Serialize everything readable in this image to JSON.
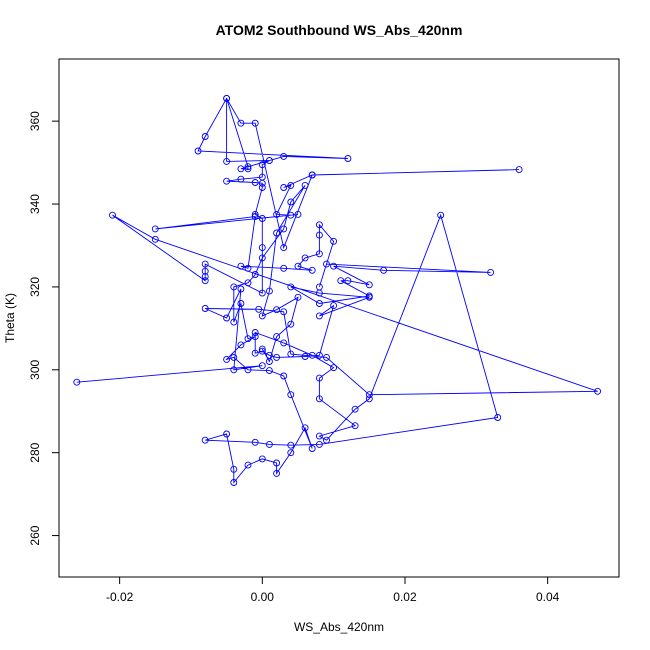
{
  "chart_data": {
    "type": "line",
    "title": "ATOM2 Southbound WS_Abs_420nm",
    "xlabel": "WS_Abs_420nm",
    "ylabel": "Theta (K)",
    "xlim": [
      -0.0285,
      0.05
    ],
    "ylim": [
      250,
      375
    ],
    "xticks": [
      -0.02,
      0.0,
      0.02,
      0.04
    ],
    "xtick_labels": [
      "-0.02",
      "0.00",
      "0.02",
      "0.04"
    ],
    "yticks": [
      260,
      280,
      300,
      320,
      340,
      360
    ],
    "ytick_labels": [
      "260",
      "280",
      "300",
      "320",
      "340",
      "360"
    ],
    "grid": false,
    "legend": "none",
    "series": [
      {
        "color": "#0000ff",
        "marker": "open-circle",
        "points": [
          [
            -0.026,
            297.0
          ],
          [
            0.0,
            301.0
          ],
          [
            -0.004,
            300.0
          ],
          [
            -0.003,
            319.5
          ],
          [
            -0.005,
            312.5
          ],
          [
            -0.008,
            314.8
          ],
          [
            -0.0005,
            314.6
          ],
          [
            0.003,
            314.0
          ],
          [
            0.004,
            303.8
          ],
          [
            0.009,
            303.0
          ],
          [
            0.015,
            294.0
          ],
          [
            0.047,
            294.8
          ],
          [
            -0.015,
            331.5
          ],
          [
            -0.021,
            337.3
          ],
          [
            -0.008,
            321.5
          ],
          [
            -0.008,
            322.5
          ],
          [
            -0.008,
            323.8
          ],
          [
            -0.008,
            325.5
          ],
          [
            0.0,
            318.5
          ],
          [
            0.0,
            329.5
          ],
          [
            0.0,
            336.5
          ],
          [
            -0.001,
            337.5
          ],
          [
            0.0,
            344.0
          ],
          [
            0.0,
            345.0
          ],
          [
            -0.001,
            345.2
          ],
          [
            -0.005,
            345.5
          ],
          [
            -0.003,
            346.0
          ],
          [
            0.0,
            346.5
          ],
          [
            0.0,
            349.5
          ],
          [
            0.001,
            350.5
          ],
          [
            -0.005,
            350.3
          ],
          [
            -0.005,
            365.5
          ],
          [
            -0.002,
            349.0
          ],
          [
            -0.002,
            348.5
          ],
          [
            -0.003,
            348.5
          ],
          [
            0.003,
            351.5
          ],
          [
            0.012,
            351.0
          ],
          [
            -0.009,
            352.8
          ],
          [
            -0.008,
            356.3
          ],
          [
            -0.005,
            365.5
          ],
          [
            -0.003,
            359.5
          ],
          [
            -0.001,
            359.5
          ],
          [
            0.003,
            329.5
          ],
          [
            0.007,
            347.0
          ],
          [
            0.036,
            348.3
          ],
          [
            0.007,
            347.0
          ],
          [
            0.003,
            344.0
          ],
          [
            0.004,
            344.5
          ],
          [
            0.002,
            337.5
          ],
          [
            0.004,
            337.3
          ],
          [
            0.005,
            337.5
          ],
          [
            -0.015,
            334.0
          ],
          [
            -0.001,
            337.0
          ],
          [
            -0.002,
            324.5
          ],
          [
            -0.003,
            325.0
          ],
          [
            0.003,
            324.5
          ],
          [
            0.007,
            324.0
          ],
          [
            0.005,
            325.0
          ],
          [
            0.006,
            327.0
          ],
          [
            0.008,
            328.0
          ],
          [
            0.008,
            332.5
          ],
          [
            0.008,
            335.0
          ],
          [
            0.01,
            331.0
          ],
          [
            0.008,
            320.0
          ],
          [
            0.009,
            325.5
          ],
          [
            0.032,
            323.5
          ],
          [
            0.017,
            324.0
          ],
          [
            0.01,
            325.0
          ],
          [
            0.015,
            320.5
          ],
          [
            0.012,
            321.5
          ],
          [
            0.011,
            321.5
          ],
          [
            0.015,
            317.8
          ],
          [
            0.008,
            316.0
          ],
          [
            0.004,
            320.0
          ],
          [
            0.008,
            318.5
          ],
          [
            0.015,
            317.5
          ],
          [
            0.008,
            313.0
          ],
          [
            0.01,
            315.5
          ],
          [
            0.008,
            303.5
          ],
          [
            0.006,
            303.2
          ],
          [
            0.002,
            303.0
          ],
          [
            0.001,
            303.5
          ],
          [
            0.0,
            304.5
          ],
          [
            -0.001,
            304.0
          ],
          [
            -0.001,
            309.0
          ],
          [
            0.003,
            306.5
          ],
          [
            0.007,
            303.5
          ],
          [
            0.01,
            300.5
          ],
          [
            0.008,
            298.0
          ],
          [
            0.008,
            293.0
          ],
          [
            0.013,
            286.5
          ],
          [
            0.008,
            284.0
          ],
          [
            0.009,
            283.0
          ],
          [
            0.013,
            290.5
          ],
          [
            0.015,
            293.0
          ],
          [
            0.025,
            337.3
          ],
          [
            0.033,
            288.5
          ],
          [
            0.008,
            282.0
          ],
          [
            0.004,
            281.8
          ],
          [
            0.001,
            282.0
          ],
          [
            -0.001,
            282.5
          ],
          [
            -0.008,
            283.0
          ],
          [
            -0.005,
            284.5
          ],
          [
            -0.004,
            276.0
          ],
          [
            -0.004,
            272.8
          ],
          [
            -0.002,
            277.0
          ],
          [
            0.0,
            278.5
          ],
          [
            0.002,
            277.5
          ],
          [
            0.002,
            275.0
          ],
          [
            0.004,
            280.0
          ],
          [
            0.006,
            286.0
          ],
          [
            0.007,
            281.0
          ],
          [
            0.004,
            294.0
          ],
          [
            0.003,
            298.5
          ],
          [
            0.001,
            299.8
          ],
          [
            -0.002,
            300.0
          ],
          [
            -0.004,
            303.0
          ],
          [
            -0.005,
            302.5
          ],
          [
            -0.003,
            306.0
          ],
          [
            -0.001,
            308.0
          ],
          [
            -0.002,
            307.5
          ],
          [
            -0.003,
            316.0
          ],
          [
            -0.004,
            311.5
          ],
          [
            -0.004,
            320.0
          ],
          [
            -0.002,
            321.0
          ],
          [
            -0.001,
            323.0
          ],
          [
            0.0,
            327.0
          ],
          [
            0.003,
            334.0
          ],
          [
            0.004,
            340.5
          ],
          [
            0.006,
            344.5
          ],
          [
            0.002,
            333.0
          ],
          [
            0.001,
            319.0
          ],
          [
            0.0,
            313.0
          ],
          [
            0.002,
            314.5
          ],
          [
            0.005,
            317.5
          ],
          [
            0.004,
            311.0
          ],
          [
            0.002,
            308.0
          ],
          [
            0.001,
            302.0
          ],
          [
            0.0,
            305.0
          ]
        ]
      }
    ]
  }
}
